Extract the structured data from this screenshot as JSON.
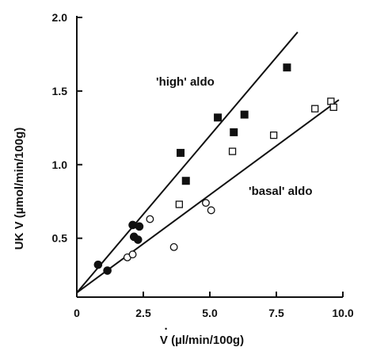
{
  "chart_data": {
    "type": "scatter",
    "title": "",
    "xlabel": "V (µl/min/100g)",
    "ylabel": "UK V (µmol/min/100g)",
    "xlim": [
      0,
      10
    ],
    "ylim": [
      0.1,
      2.0
    ],
    "x_ticks": [
      0,
      2.5,
      5.0,
      7.5,
      10.0
    ],
    "x_tick_labels": [
      "0",
      "2.5",
      "5.0",
      "7.5",
      "10.0"
    ],
    "y_ticks": [
      0.5,
      1.0,
      1.5,
      2.0
    ],
    "y_tick_labels": [
      "0.5",
      "1.0",
      "1.5",
      "2.0"
    ],
    "grid": false,
    "series": [
      {
        "name": "'high' aldo",
        "color": "#111111",
        "points": [
          {
            "x": 0.8,
            "y": 0.32,
            "marker": "filled-circle"
          },
          {
            "x": 1.15,
            "y": 0.28,
            "marker": "filled-circle"
          },
          {
            "x": 2.1,
            "y": 0.59,
            "marker": "filled-circle"
          },
          {
            "x": 2.15,
            "y": 0.51,
            "marker": "filled-circle"
          },
          {
            "x": 2.3,
            "y": 0.49,
            "marker": "filled-circle"
          },
          {
            "x": 2.35,
            "y": 0.58,
            "marker": "filled-circle"
          },
          {
            "x": 3.9,
            "y": 1.08,
            "marker": "filled-square"
          },
          {
            "x": 4.1,
            "y": 0.89,
            "marker": "filled-square"
          },
          {
            "x": 5.3,
            "y": 1.32,
            "marker": "filled-square"
          },
          {
            "x": 5.9,
            "y": 1.22,
            "marker": "filled-square"
          },
          {
            "x": 6.3,
            "y": 1.34,
            "marker": "filled-square"
          },
          {
            "x": 7.9,
            "y": 1.66,
            "marker": "filled-square"
          }
        ],
        "fit_line": {
          "x": [
            0,
            8.3
          ],
          "y": [
            0.13,
            1.9
          ]
        }
      },
      {
        "name": "'basal' aldo",
        "color": "#111111",
        "points": [
          {
            "x": 1.9,
            "y": 0.37,
            "marker": "open-circle"
          },
          {
            "x": 2.1,
            "y": 0.39,
            "marker": "open-circle"
          },
          {
            "x": 2.75,
            "y": 0.63,
            "marker": "open-circle"
          },
          {
            "x": 3.65,
            "y": 0.44,
            "marker": "open-circle"
          },
          {
            "x": 4.85,
            "y": 0.74,
            "marker": "open-circle"
          },
          {
            "x": 5.05,
            "y": 0.69,
            "marker": "open-circle"
          },
          {
            "x": 3.85,
            "y": 0.73,
            "marker": "open-square"
          },
          {
            "x": 5.85,
            "y": 1.09,
            "marker": "open-square"
          },
          {
            "x": 7.4,
            "y": 1.2,
            "marker": "open-square"
          },
          {
            "x": 8.95,
            "y": 1.38,
            "marker": "open-square"
          },
          {
            "x": 9.55,
            "y": 1.43,
            "marker": "open-square"
          },
          {
            "x": 9.65,
            "y": 1.39,
            "marker": "open-square"
          }
        ],
        "fit_line": {
          "x": [
            0,
            9.85
          ],
          "y": [
            0.13,
            1.44
          ]
        }
      }
    ],
    "annotations": [
      "'high' aldo",
      "'basal' aldo"
    ]
  }
}
